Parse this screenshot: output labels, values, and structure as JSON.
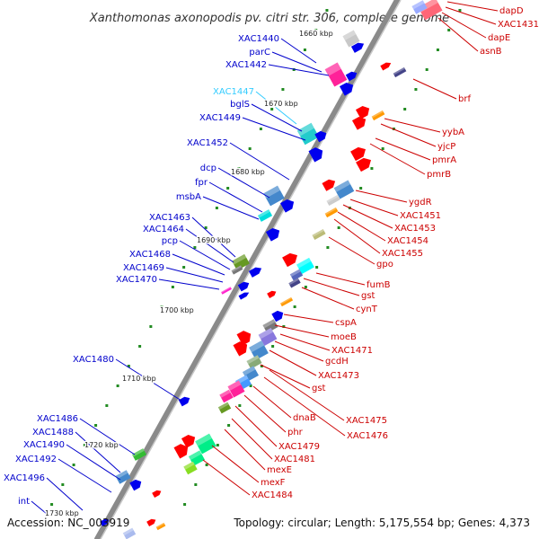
{
  "title": "Xanthomonas axonopodis pv. citri str. 306, complete genome",
  "colors": {
    "backbone": "#8a8a8a",
    "left_label": "#0000cc",
    "left_label_highlight": "#33ccff",
    "right_label": "#cc0000",
    "tick": "#228b22"
  },
  "ticks": [
    "1660 kbp",
    "1670 kbp",
    "1680 kbp",
    "1690 kbp",
    "1700 kbp",
    "1710 kbp",
    "1720 kbp",
    "1730 kbp"
  ],
  "left_labels": [
    "XAC1440",
    "parC",
    "XAC1442",
    "XAC1447",
    "bglS",
    "XAC1449",
    "XAC1452",
    "dcp",
    "fpr",
    "msbA",
    "XAC1463",
    "XAC1464",
    "pcp",
    "XAC1468",
    "XAC1469",
    "XAC1470",
    "XAC1480",
    "XAC1486",
    "XAC1488",
    "XAC1490",
    "XAC1492",
    "XAC1496",
    "int"
  ],
  "right_labels": [
    "dapD",
    "XAC1431",
    "dapE",
    "asnB",
    "brf",
    "yybA",
    "yjcP",
    "pmrA",
    "pmrB",
    "ygdR",
    "XAC1451",
    "XAC1453",
    "XAC1454",
    "XAC1455",
    "gpo",
    "fumB",
    "gst",
    "cynT",
    "cspA",
    "moeB",
    "XAC1471",
    "gcdH",
    "XAC1473",
    "gst",
    "XAC1475",
    "XAC1476",
    "dnaB",
    "phr",
    "XAC1479",
    "XAC1481",
    "mexE",
    "mexF",
    "XAC1484"
  ],
  "footer": {
    "accession": "Accession: NC_003919",
    "summary": "Topology: circular; Length: 5,175,554 bp; Genes: 4,373"
  }
}
